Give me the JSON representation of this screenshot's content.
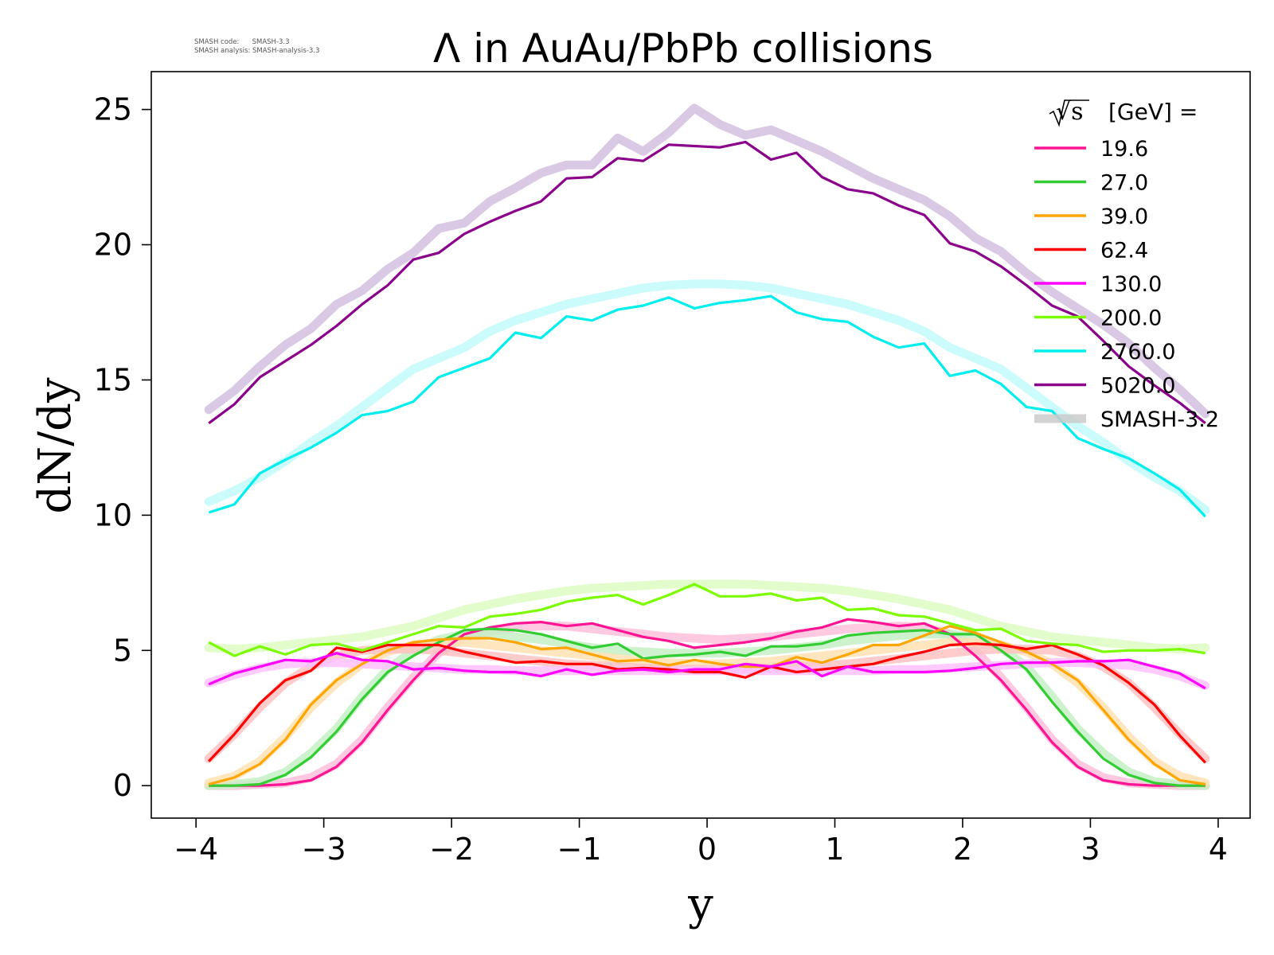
{
  "version_note": {
    "line1": "SMASH code:      SMASH-3.3",
    "line2": "SMASH analysis: SMASH-analysis-3.3"
  },
  "chart_data": {
    "type": "line",
    "title": "Λ in AuAu/PbPb collisions",
    "xlabel": "y",
    "ylabel": "dN/dy",
    "xlim": [
      -4.35,
      4.25
    ],
    "ylim": [
      -1.2,
      26.4
    ],
    "xticks": [
      -4,
      -3,
      -2,
      -1,
      0,
      1,
      2,
      3,
      4
    ],
    "xtick_labels": [
      "−4",
      "−3",
      "−2",
      "−1",
      "0",
      "1",
      "2",
      "3",
      "4"
    ],
    "yticks": [
      0,
      5,
      10,
      15,
      20,
      25
    ],
    "ytick_labels": [
      "0",
      "5",
      "10",
      "15",
      "20",
      "25"
    ],
    "grid": false,
    "legend_position": "top-right",
    "legend_title_prefix": "√s",
    "legend_title_suffix": "[GeV] =",
    "reference_label": "SMASH-3.2",
    "x": [
      -3.9,
      -3.7,
      -3.5,
      -3.3,
      -3.1,
      -2.9,
      -2.7,
      -2.5,
      -2.3,
      -2.1,
      -1.9,
      -1.7,
      -1.5,
      -1.3,
      -1.1,
      -0.9,
      -0.7,
      -0.5,
      -0.3,
      -0.1,
      0.1,
      0.3,
      0.5,
      0.7,
      0.9,
      1.1,
      1.3,
      1.5,
      1.7,
      1.9,
      2.1,
      2.3,
      2.5,
      2.7,
      2.9,
      3.1,
      3.3,
      3.5,
      3.7,
      3.9
    ],
    "series": [
      {
        "name": "19.6",
        "color": "#ff1493",
        "ref_color": "#ffc0dc",
        "values": [
          0,
          0,
          0,
          0.05,
          0.2,
          0.7,
          1.6,
          2.8,
          3.9,
          4.9,
          5.6,
          5.85,
          6.0,
          6.05,
          5.9,
          6.0,
          5.75,
          5.5,
          5.35,
          5.1,
          5.2,
          5.3,
          5.45,
          5.7,
          5.85,
          6.15,
          6.05,
          5.9,
          6.0,
          5.6,
          4.8,
          3.9,
          2.8,
          1.6,
          0.7,
          0.2,
          0.05,
          0,
          0,
          0
        ],
        "ref_values": [
          0,
          0,
          0.05,
          0.1,
          0.3,
          0.8,
          1.7,
          2.9,
          4.0,
          4.9,
          5.5,
          5.7,
          5.85,
          5.9,
          5.9,
          5.8,
          5.7,
          5.6,
          5.5,
          5.45,
          5.4,
          5.45,
          5.5,
          5.6,
          5.7,
          5.8,
          5.85,
          5.9,
          5.85,
          5.6,
          5.0,
          4.0,
          2.9,
          1.7,
          0.8,
          0.3,
          0.1,
          0.05,
          0,
          0
        ]
      },
      {
        "name": "27.0",
        "color": "#32cd32",
        "ref_color": "#c4f0c4",
        "values": [
          0,
          0,
          0.05,
          0.4,
          1.05,
          2.0,
          3.2,
          4.2,
          4.8,
          5.3,
          5.75,
          5.8,
          5.75,
          5.6,
          5.35,
          5.1,
          5.25,
          4.7,
          4.8,
          4.85,
          4.95,
          4.8,
          5.15,
          5.15,
          5.25,
          5.55,
          5.65,
          5.7,
          5.75,
          5.6,
          5.6,
          5.0,
          4.3,
          3.1,
          2.0,
          1.0,
          0.4,
          0.1,
          0,
          0
        ],
        "ref_values": [
          0,
          0.05,
          0.15,
          0.5,
          1.2,
          2.1,
          3.3,
          4.3,
          5.0,
          5.4,
          5.6,
          5.6,
          5.5,
          5.4,
          5.25,
          5.1,
          5.0,
          4.95,
          4.9,
          4.9,
          4.9,
          4.95,
          5.0,
          5.1,
          5.2,
          5.35,
          5.45,
          5.55,
          5.6,
          5.6,
          5.5,
          5.1,
          4.4,
          3.3,
          2.1,
          1.2,
          0.5,
          0.15,
          0.05,
          0
        ]
      },
      {
        "name": "39.0",
        "color": "#ffa500",
        "ref_color": "#ffe2b3",
        "values": [
          0.05,
          0.3,
          0.8,
          1.7,
          3.0,
          3.9,
          4.5,
          5.0,
          5.3,
          5.4,
          5.45,
          5.45,
          5.3,
          5.05,
          5.1,
          4.85,
          4.6,
          4.65,
          4.45,
          4.65,
          4.5,
          4.4,
          4.4,
          4.75,
          4.55,
          4.85,
          5.2,
          5.2,
          5.55,
          5.9,
          5.65,
          5.3,
          4.95,
          4.5,
          3.9,
          2.8,
          1.7,
          0.8,
          0.2,
          0.05
        ],
        "ref_values": [
          0.1,
          0.35,
          0.9,
          1.8,
          2.9,
          3.8,
          4.5,
          4.95,
          5.2,
          5.3,
          5.3,
          5.2,
          5.1,
          5.0,
          4.9,
          4.8,
          4.7,
          4.6,
          4.55,
          4.5,
          4.5,
          4.55,
          4.6,
          4.7,
          4.8,
          4.9,
          5.0,
          5.1,
          5.2,
          5.3,
          5.3,
          5.2,
          4.95,
          4.5,
          3.8,
          2.9,
          1.8,
          0.9,
          0.35,
          0.1
        ]
      },
      {
        "name": "62.4",
        "color": "#ff0000",
        "ref_color": "#ffc2c2",
        "values": [
          0.9,
          1.9,
          3.05,
          3.9,
          4.25,
          5.1,
          4.95,
          5.2,
          5.2,
          5.2,
          4.95,
          4.75,
          4.55,
          4.6,
          4.5,
          4.5,
          4.3,
          4.35,
          4.3,
          4.2,
          4.2,
          4.0,
          4.4,
          4.2,
          4.3,
          4.4,
          4.5,
          4.75,
          4.95,
          5.2,
          5.25,
          5.2,
          5.05,
          5.2,
          4.85,
          4.45,
          3.8,
          3.0,
          1.85,
          0.85
        ],
        "ref_values": [
          1.0,
          1.9,
          2.9,
          3.8,
          4.4,
          4.8,
          5.0,
          5.05,
          5.05,
          5.0,
          4.9,
          4.8,
          4.7,
          4.6,
          4.5,
          4.45,
          4.4,
          4.35,
          4.3,
          4.3,
          4.3,
          4.3,
          4.35,
          4.4,
          4.45,
          4.5,
          4.6,
          4.7,
          4.8,
          4.9,
          5.0,
          5.05,
          5.05,
          5.0,
          4.8,
          4.4,
          3.8,
          2.9,
          1.9,
          1.0
        ]
      },
      {
        "name": "130.0",
        "color": "#ff00ff",
        "ref_color": "#ffc2ff",
        "values": [
          3.75,
          4.15,
          4.4,
          4.65,
          4.6,
          4.9,
          4.65,
          4.6,
          4.3,
          4.35,
          4.25,
          4.2,
          4.2,
          4.05,
          4.3,
          4.1,
          4.25,
          4.3,
          4.2,
          4.3,
          4.3,
          4.5,
          4.4,
          4.6,
          4.05,
          4.4,
          4.2,
          4.2,
          4.2,
          4.25,
          4.35,
          4.5,
          4.55,
          4.55,
          4.6,
          4.6,
          4.65,
          4.4,
          4.15,
          3.6
        ],
        "ref_values": [
          3.8,
          4.1,
          4.35,
          4.5,
          4.55,
          4.55,
          4.5,
          4.45,
          4.4,
          4.35,
          4.3,
          4.3,
          4.25,
          4.25,
          4.25,
          4.25,
          4.25,
          4.25,
          4.25,
          4.25,
          4.25,
          4.25,
          4.25,
          4.25,
          4.25,
          4.25,
          4.25,
          4.3,
          4.3,
          4.35,
          4.4,
          4.45,
          4.5,
          4.55,
          4.55,
          4.5,
          4.45,
          4.3,
          4.05,
          3.7
        ]
      },
      {
        "name": "200.0",
        "color": "#7cfc00",
        "ref_color": "#ddfcc2",
        "values": [
          5.3,
          4.8,
          5.15,
          4.85,
          5.2,
          5.25,
          5.0,
          5.3,
          5.6,
          5.9,
          5.85,
          6.25,
          6.35,
          6.5,
          6.8,
          6.95,
          7.05,
          6.7,
          7.05,
          7.45,
          7.0,
          7.0,
          7.1,
          6.85,
          6.95,
          6.5,
          6.55,
          6.3,
          6.25,
          6.0,
          5.75,
          5.8,
          5.35,
          5.25,
          5.2,
          4.95,
          5.0,
          5.0,
          5.05,
          4.9
        ],
        "ref_values": [
          5.1,
          5.05,
          5.1,
          5.2,
          5.3,
          5.4,
          5.5,
          5.7,
          5.9,
          6.2,
          6.5,
          6.7,
          6.9,
          7.05,
          7.2,
          7.3,
          7.35,
          7.4,
          7.45,
          7.45,
          7.45,
          7.45,
          7.4,
          7.35,
          7.3,
          7.2,
          7.05,
          6.9,
          6.7,
          6.5,
          6.2,
          5.9,
          5.7,
          5.5,
          5.4,
          5.3,
          5.2,
          5.1,
          5.05,
          5.1
        ]
      },
      {
        "name": "2760.0",
        "color": "#00eeee",
        "ref_color": "#c2fafa",
        "values": [
          10.1,
          10.4,
          11.55,
          12.05,
          12.5,
          13.05,
          13.7,
          13.85,
          14.2,
          15.1,
          15.45,
          15.8,
          16.75,
          16.55,
          17.35,
          17.2,
          17.6,
          17.75,
          18.05,
          17.65,
          17.85,
          17.95,
          18.1,
          17.5,
          17.25,
          17.15,
          16.6,
          16.2,
          16.35,
          15.15,
          15.35,
          14.85,
          14.0,
          13.85,
          12.85,
          12.45,
          12.1,
          11.55,
          10.95,
          9.95
        ],
        "ref_values": [
          10.5,
          10.9,
          11.4,
          12.0,
          12.7,
          13.3,
          14.0,
          14.7,
          15.4,
          15.8,
          16.2,
          16.8,
          17.2,
          17.5,
          17.8,
          18.0,
          18.2,
          18.4,
          18.5,
          18.55,
          18.55,
          18.5,
          18.4,
          18.2,
          18.0,
          17.8,
          17.5,
          17.2,
          16.8,
          16.2,
          15.8,
          15.4,
          14.7,
          14.0,
          13.3,
          12.7,
          12.0,
          11.4,
          10.9,
          10.2
        ]
      },
      {
        "name": "5020.0",
        "color": "#8b008b",
        "ref_color": "#d4bfdf",
        "values": [
          13.4,
          14.1,
          15.1,
          15.7,
          16.3,
          17.0,
          17.8,
          18.5,
          19.45,
          19.7,
          20.4,
          20.85,
          21.25,
          21.6,
          22.45,
          22.5,
          23.2,
          23.1,
          23.7,
          23.65,
          23.6,
          23.8,
          23.15,
          23.4,
          22.5,
          22.05,
          21.9,
          21.45,
          21.1,
          20.05,
          19.75,
          19.2,
          18.5,
          17.75,
          17.35,
          16.45,
          15.5,
          14.8,
          14.15,
          13.4
        ],
        "ref_values": [
          13.9,
          14.6,
          15.5,
          16.3,
          16.9,
          17.8,
          18.3,
          19.1,
          19.7,
          20.6,
          20.8,
          21.6,
          22.1,
          22.65,
          22.95,
          22.95,
          23.95,
          23.45,
          24.15,
          25.05,
          24.45,
          24.05,
          24.25,
          23.85,
          23.45,
          22.95,
          22.45,
          22.05,
          21.65,
          21.05,
          20.25,
          19.75,
          18.95,
          18.25,
          17.65,
          17.05,
          16.35,
          15.45,
          14.65,
          13.75
        ]
      }
    ]
  }
}
